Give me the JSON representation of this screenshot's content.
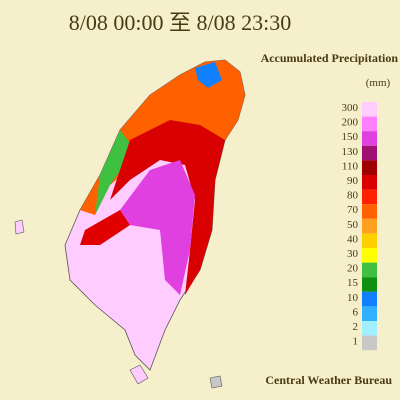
{
  "header": {
    "title": "8/08 00:00 至 8/08 23:30"
  },
  "legend": {
    "title": "Accumulated Precipitation",
    "unit": "(mm)",
    "items": [
      {
        "label": "300",
        "color": "#ffccff"
      },
      {
        "label": "200",
        "color": "#ff80ff"
      },
      {
        "label": "150",
        "color": "#e040e0"
      },
      {
        "label": "130",
        "color": "#a01070"
      },
      {
        "label": "110",
        "color": "#a00000"
      },
      {
        "label": "90",
        "color": "#d80000"
      },
      {
        "label": "80",
        "color": "#ff2000"
      },
      {
        "label": "70",
        "color": "#ff6000"
      },
      {
        "label": "50",
        "color": "#ffa020"
      },
      {
        "label": "40",
        "color": "#ffd000"
      },
      {
        "label": "30",
        "color": "#ffff00"
      },
      {
        "label": "20",
        "color": "#40c040"
      },
      {
        "label": "15",
        "color": "#109010"
      },
      {
        "label": "10",
        "color": "#1080ff"
      },
      {
        "label": "6",
        "color": "#30b0ff"
      },
      {
        "label": "2",
        "color": "#a0f0ff"
      },
      {
        "label": "1",
        "color": "#c8c8c8"
      }
    ]
  },
  "footer": {
    "credit": "Central Weather Bureau"
  }
}
